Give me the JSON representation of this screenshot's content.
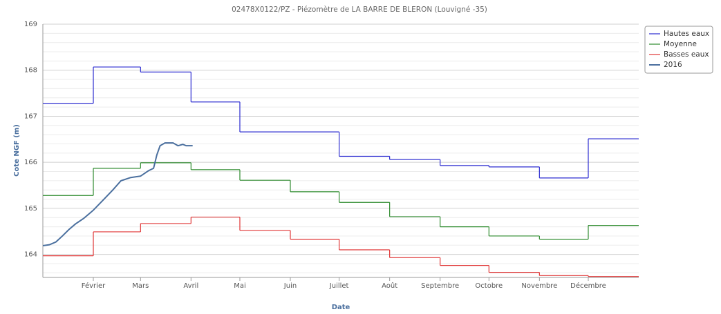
{
  "chart_data": {
    "type": "line",
    "title": "02478X0122/PZ - Piézomètre de LA BARRE DE BLERON (Louvigné -35)",
    "xlabel": "Date",
    "ylabel": "Cote NGF (m)",
    "xlim": [
      0,
      366
    ],
    "ylim": [
      163.5,
      169
    ],
    "xticks": [
      {
        "value": 31,
        "label": "Février"
      },
      {
        "value": 60,
        "label": "Mars"
      },
      {
        "value": 91,
        "label": "Avril"
      },
      {
        "value": 121,
        "label": "Mai"
      },
      {
        "value": 152,
        "label": "Juin"
      },
      {
        "value": 182,
        "label": "Juillet"
      },
      {
        "value": 213,
        "label": "Août"
      },
      {
        "value": 244,
        "label": "Septembre"
      },
      {
        "value": 274,
        "label": "Octobre"
      },
      {
        "value": 305,
        "label": "Novembre"
      },
      {
        "value": 335,
        "label": "Décembre"
      }
    ],
    "yticks": [
      164,
      165,
      166,
      167,
      168,
      169
    ],
    "yminorticks": [
      163.6,
      163.8,
      164.2,
      164.4,
      164.6,
      164.8,
      165.2,
      165.4,
      165.6,
      165.8,
      166.2,
      166.4,
      166.6,
      166.8,
      167.2,
      167.4,
      167.6,
      167.8,
      168.2,
      168.4,
      168.6,
      168.8
    ],
    "grid": true,
    "legend": "top-right",
    "x": [
      0,
      31,
      60,
      91,
      121,
      152,
      182,
      213,
      244,
      274,
      305,
      335
    ],
    "series": [
      {
        "name": "Hautes eaux",
        "color": "#2b2bd0",
        "step": true,
        "values": [
          167.28,
          168.07,
          167.96,
          167.31,
          166.66,
          166.66,
          166.13,
          166.06,
          165.93,
          165.9,
          165.66,
          166.51
        ]
      },
      {
        "name": "Moyenne",
        "color": "#2e8b2e",
        "step": true,
        "values": [
          165.28,
          165.87,
          165.99,
          165.84,
          165.61,
          165.36,
          165.13,
          164.82,
          164.6,
          164.4,
          164.33,
          164.63
        ]
      },
      {
        "name": "Basses eaux",
        "color": "#e03434",
        "step": true,
        "values": [
          163.97,
          164.49,
          164.67,
          164.81,
          164.52,
          164.33,
          164.1,
          163.93,
          163.76,
          163.61,
          163.54,
          163.52
        ]
      },
      {
        "name": "2016",
        "color": "#4a6f9e",
        "step": false,
        "x": [
          0,
          4,
          8,
          12,
          16,
          20,
          25,
          31,
          37,
          43,
          48,
          54,
          60,
          65,
          68,
          70,
          72,
          75,
          80,
          83,
          86,
          88,
          92
        ],
        "values": [
          164.19,
          164.21,
          164.27,
          164.4,
          164.54,
          164.66,
          164.78,
          164.96,
          165.18,
          165.4,
          165.6,
          165.67,
          165.7,
          165.82,
          165.87,
          166.16,
          166.36,
          166.42,
          166.42,
          166.36,
          166.39,
          166.36,
          166.36
        ]
      }
    ]
  }
}
